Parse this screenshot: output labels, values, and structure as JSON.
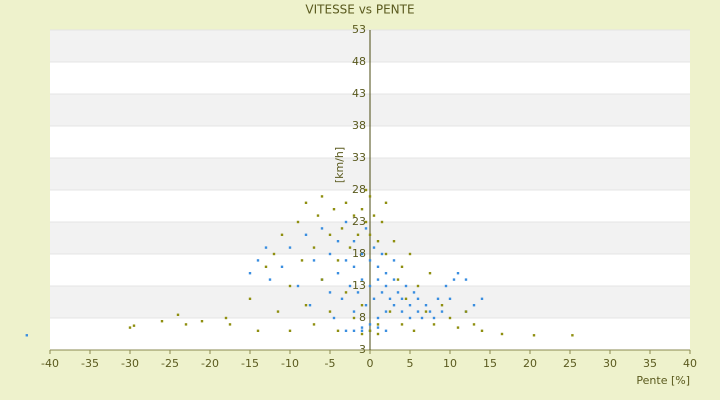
{
  "chart_data": {
    "type": "scatter",
    "title": "VITESSE vs PENTE",
    "x_label": "Pente [%]",
    "y_label": "[km/h]",
    "xlim": [
      -40,
      40
    ],
    "xticks": [
      -40,
      -35,
      -30,
      -25,
      -20,
      -15,
      -10,
      -5,
      0,
      5,
      10,
      15,
      20,
      25,
      30,
      35,
      40
    ],
    "ylim": [
      3,
      53
    ],
    "yticks": [
      3,
      8,
      13,
      18,
      23,
      28,
      33,
      38,
      43,
      48,
      53
    ],
    "bands": true,
    "series": [
      {
        "color": "#3a8ee0",
        "x": [
          -42.9,
          -15,
          -14,
          -13,
          -12.5,
          -11,
          -10,
          -9,
          -8,
          -7.5,
          -7,
          -6,
          -6,
          -5,
          -5,
          -4.5,
          -4,
          -4,
          -3.5,
          -3,
          -3,
          -2.5,
          -2,
          -2,
          -2,
          -1.5,
          -1,
          -1,
          -1,
          -0.5,
          -0.5,
          0,
          0,
          0,
          0.5,
          0.5,
          1,
          1,
          1,
          1.5,
          1.5,
          2,
          2,
          2,
          2.5,
          3,
          3,
          3,
          3.5,
          4,
          4,
          4.5,
          5,
          5,
          5.5,
          6,
          6,
          6.5,
          7,
          7.5,
          8,
          8.5,
          9,
          9.5,
          10,
          10.5,
          11,
          12,
          13,
          14,
          12,
          -3,
          -2,
          -1,
          0,
          1,
          2
        ],
        "values": [
          5.3,
          15,
          17,
          19,
          14,
          16,
          19,
          13,
          21,
          10,
          17,
          14,
          22,
          12,
          18,
          8,
          15,
          20,
          11,
          17,
          23,
          13,
          9,
          16,
          20,
          12,
          6,
          14,
          18,
          10,
          22,
          7,
          13,
          17,
          11,
          19,
          8,
          14,
          16,
          12,
          18,
          9,
          13,
          15,
          11,
          10,
          14,
          17,
          12,
          9,
          11,
          13,
          8,
          10,
          12,
          9,
          11,
          8,
          10,
          9,
          8,
          11,
          9,
          13,
          11,
          14,
          15,
          14,
          10,
          11,
          9,
          6,
          6,
          6.5,
          6,
          6.5,
          6
        ]
      },
      {
        "color": "#8f8f10",
        "x": [
          -30,
          -29.5,
          -26,
          -24,
          -23,
          -21,
          -18,
          -17.5,
          -15,
          -14,
          -13,
          -12,
          -11.5,
          -11,
          -10,
          -10,
          -9,
          -8.5,
          -8,
          -8,
          -7,
          -7,
          -6.5,
          -6,
          -6,
          -5,
          -5,
          -4.5,
          -4,
          -4,
          -3.5,
          -3,
          -3,
          -2.5,
          -2,
          -2,
          -1.5,
          -1,
          -1,
          -0.5,
          0,
          0,
          0,
          0.5,
          1,
          1,
          1.5,
          2,
          2,
          2.5,
          3,
          3.5,
          4,
          4,
          4.5,
          5,
          5.5,
          6,
          7,
          7.5,
          8,
          9,
          10,
          11,
          12,
          13,
          14,
          16.5,
          20.5,
          25.3,
          -1,
          1,
          -0.5
        ],
        "values": [
          6.5,
          6.8,
          7.5,
          8.5,
          7,
          7.5,
          8,
          7,
          11,
          6,
          16,
          18,
          9,
          21,
          13,
          6,
          23,
          17,
          10,
          26,
          19,
          7,
          24,
          14,
          27,
          21,
          9,
          25,
          17,
          6,
          22,
          12,
          26,
          19,
          24,
          8,
          21,
          25,
          10,
          23,
          27,
          6,
          21,
          24,
          20,
          7,
          23,
          18,
          26,
          9,
          20,
          14,
          16,
          7,
          11,
          18,
          6,
          13,
          9,
          15,
          7,
          10,
          8,
          6.5,
          9,
          7,
          6,
          5.5,
          5.3,
          5.3,
          5.5,
          5.5,
          28
        ]
      }
    ]
  }
}
